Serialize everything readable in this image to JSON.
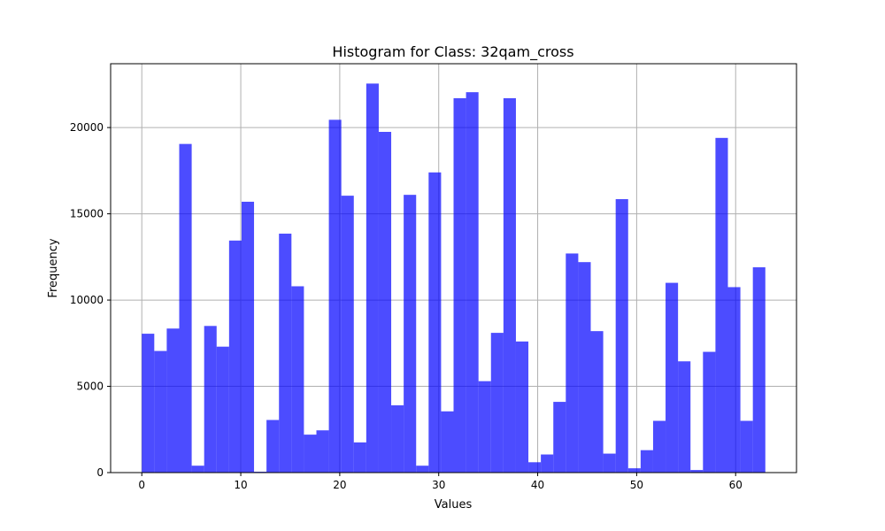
{
  "chart_data": {
    "type": "bar",
    "title": "Histogram for Class: 32qam_cross",
    "xlabel": "Values",
    "ylabel": "Frequency",
    "xlim": [
      -3.15,
      66.15
    ],
    "ylim": [
      0,
      23700
    ],
    "x_ticks": [
      0,
      10,
      20,
      30,
      40,
      50,
      60
    ],
    "y_ticks": [
      0,
      5000,
      10000,
      15000,
      20000
    ],
    "grid": true,
    "bar_color": "#0000ff",
    "bar_alpha": 0.7,
    "bins": 50,
    "bin_start": 0,
    "bin_end": 63,
    "values": [
      8050,
      7050,
      8350,
      19050,
      400,
      8500,
      7300,
      13450,
      15700,
      50,
      3050,
      13850,
      10800,
      2200,
      2450,
      20450,
      16050,
      1750,
      22550,
      19750,
      3900,
      16100,
      400,
      17400,
      3550,
      21700,
      22050,
      5300,
      8100,
      21700,
      7600,
      600,
      1050,
      4100,
      12700,
      12200,
      8200,
      1100,
      15850,
      250,
      1300,
      3000,
      11000,
      6450,
      150,
      7000,
      19400,
      10750,
      3000,
      11900
    ]
  }
}
